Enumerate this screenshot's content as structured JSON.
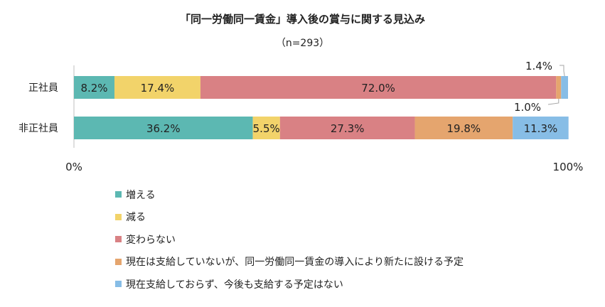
{
  "colors": {
    "increase": "#5cb8b2",
    "decrease": "#f2d36a",
    "unchanged": "#d98184",
    "new_plan": "#e5a56e",
    "none_planned": "#87bde6"
  },
  "chart_data": {
    "type": "bar",
    "orientation": "horizontal",
    "stacked": "percent",
    "title": "「同一労働同一賃金」導入後の賞与に関する見込み",
    "subtitle": "（n=293）",
    "categories": [
      "正社員",
      "非正社員"
    ],
    "series": [
      {
        "name": "増える",
        "values": [
          8.2,
          36.2
        ],
        "labels": [
          "8.2%",
          "36.2%"
        ]
      },
      {
        "name": "減る",
        "values": [
          17.4,
          5.5
        ],
        "labels": [
          "17.4%",
          "5.5%"
        ]
      },
      {
        "name": "変わらない",
        "values": [
          72.0,
          27.3
        ],
        "labels": [
          "72.0%",
          "27.3%"
        ]
      },
      {
        "name": "現在は支給していないが、同一労働同一賃金の導入により新たに設ける予定",
        "values": [
          1.0,
          19.8
        ],
        "labels": [
          "1.0%",
          "19.8%"
        ]
      },
      {
        "name": "現在支給しておらず、今後も支給する予定はない",
        "values": [
          1.4,
          11.3
        ],
        "labels": [
          "1.4%",
          "11.3%"
        ]
      }
    ],
    "xlim": [
      0,
      100
    ],
    "xticks": [
      "0%",
      "100%"
    ],
    "grid": false,
    "legend_position": "bottom-left"
  }
}
